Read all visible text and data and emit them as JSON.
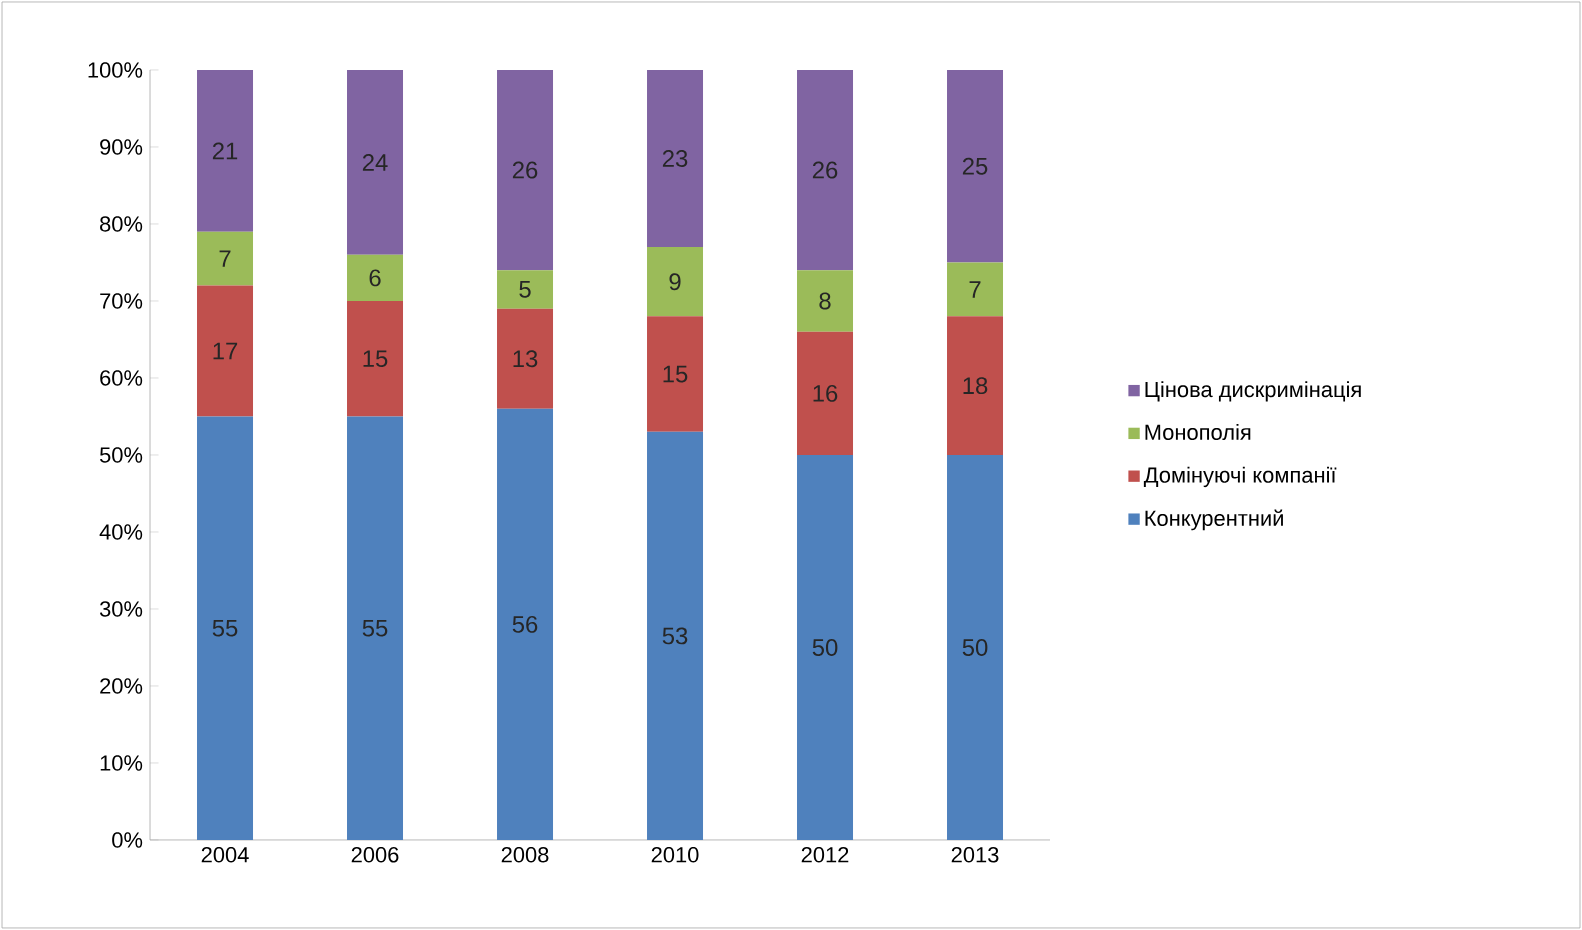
{
  "chart_data": {
    "type": "bar",
    "stacked": true,
    "data_labels": true,
    "legend": "right",
    "grid": false,
    "categories": [
      "2004",
      "2006",
      "2008",
      "2010",
      "2012",
      "2013"
    ],
    "series": [
      {
        "name": "Конкурентний",
        "color": "#4f81bd",
        "values": [
          55,
          55,
          56,
          53,
          50,
          50
        ]
      },
      {
        "name": "Домінуючі компанії",
        "color": "#c0504d",
        "values": [
          17,
          15,
          13,
          15,
          16,
          18
        ]
      },
      {
        "name": "Монополія",
        "color": "#9bbb59",
        "values": [
          7,
          6,
          5,
          9,
          8,
          7
        ]
      },
      {
        "name": "Цінова дискримінація",
        "color": "#8064a2",
        "values": [
          21,
          24,
          26,
          23,
          26,
          25
        ]
      }
    ],
    "ylim": [
      0,
      100
    ],
    "yticks": [
      {
        "value": 0,
        "label": "0%"
      },
      {
        "value": 10,
        "label": "10%"
      },
      {
        "value": 20,
        "label": "20%"
      },
      {
        "value": 30,
        "label": "30%"
      },
      {
        "value": 40,
        "label": "40%"
      },
      {
        "value": 50,
        "label": "50%"
      },
      {
        "value": 60,
        "label": "60%"
      },
      {
        "value": 70,
        "label": "70%"
      },
      {
        "value": 80,
        "label": "80%"
      },
      {
        "value": 90,
        "label": "90%"
      },
      {
        "value": 100,
        "label": "100%"
      }
    ]
  }
}
